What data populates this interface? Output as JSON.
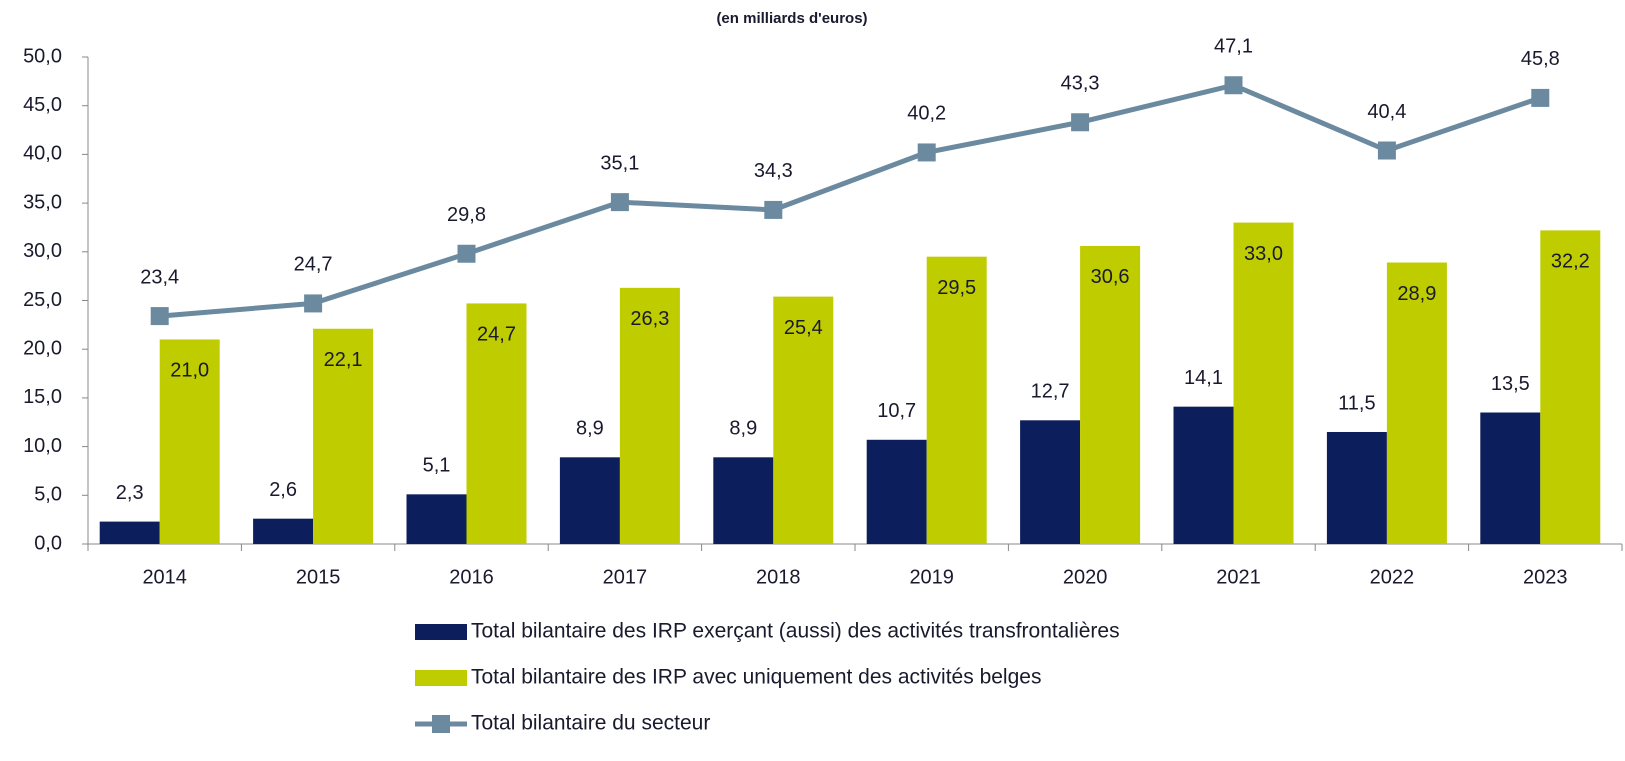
{
  "chart_data": {
    "type": "bar_line",
    "title": "(en milliards d'euros)",
    "categories": [
      "2014",
      "2015",
      "2016",
      "2017",
      "2018",
      "2019",
      "2020",
      "2021",
      "2022",
      "2023"
    ],
    "series": [
      {
        "name": "Total bilantaire des IRP exerçant (aussi) des activités transfrontalières",
        "type": "bar",
        "color": "#0c1f5c",
        "values": [
          2.3,
          2.6,
          5.1,
          8.9,
          8.9,
          10.7,
          12.7,
          14.1,
          11.5,
          13.5
        ],
        "value_labels": [
          "2,3",
          "2,6",
          "5,1",
          "8,9",
          "8,9",
          "10,7",
          "12,7",
          "14,1",
          "11,5",
          "13,5"
        ]
      },
      {
        "name": "Total bilantaire des IRP avec uniquement des activités belges",
        "type": "bar",
        "color": "#bfcc00",
        "values": [
          21.0,
          22.1,
          24.7,
          26.3,
          25.4,
          29.5,
          30.6,
          33.0,
          28.9,
          32.2
        ],
        "value_labels": [
          "21,0",
          "22,1",
          "24,7",
          "26,3",
          "25,4",
          "29,5",
          "30,6",
          "33,0",
          "28,9",
          "32,2"
        ]
      },
      {
        "name": "Total bilantaire du secteur",
        "type": "line",
        "color": "#6b8aa0",
        "values": [
          23.4,
          24.7,
          29.8,
          35.1,
          34.3,
          40.2,
          43.3,
          47.1,
          40.4,
          45.8
        ],
        "value_labels": [
          "23,4",
          "24,7",
          "29,8",
          "35,1",
          "34,3",
          "40,2",
          "43,3",
          "47,1",
          "40,4",
          "45,8"
        ]
      }
    ],
    "ylim": [
      0,
      50
    ],
    "yticks": [
      {
        "value": 0,
        "label": "0,0"
      },
      {
        "value": 5,
        "label": "5,0"
      },
      {
        "value": 10,
        "label": "10,0"
      },
      {
        "value": 15,
        "label": "15,0"
      },
      {
        "value": 20,
        "label": "20,0"
      },
      {
        "value": 25,
        "label": "25,0"
      },
      {
        "value": 30,
        "label": "30,0"
      },
      {
        "value": 35,
        "label": "35,0"
      },
      {
        "value": 40,
        "label": "40,0"
      },
      {
        "value": 45,
        "label": "45,0"
      },
      {
        "value": 50,
        "label": "50,0"
      }
    ],
    "grid": false,
    "legend": "bottom"
  }
}
